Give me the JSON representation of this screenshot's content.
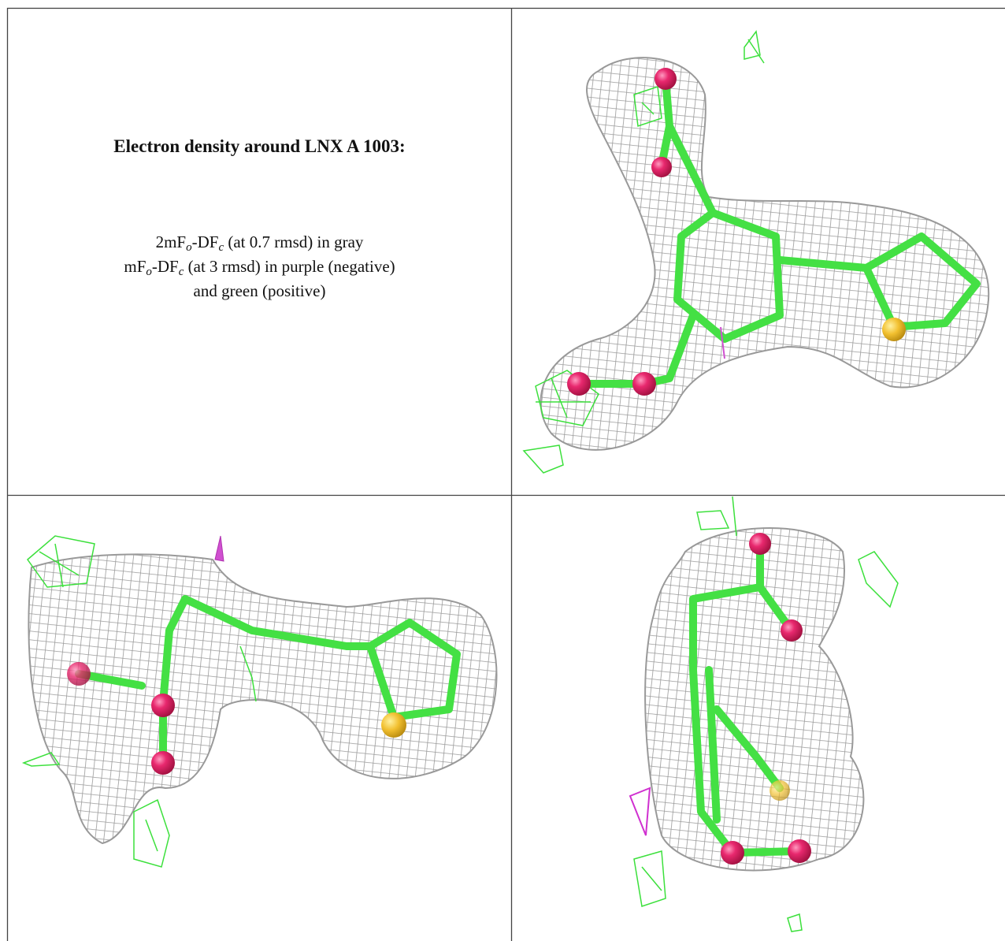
{
  "caption": {
    "title": "Electron density around LNX A 1003:",
    "lines": [
      [
        "2mF",
        "o",
        "-DF",
        "c",
        " (at 0.7 rmsd) in gray"
      ],
      [
        "mF",
        "o",
        "-DF",
        "c",
        " (at 3 rmsd) in purple (negative)"
      ],
      [
        "and green (positive)"
      ]
    ]
  }
}
